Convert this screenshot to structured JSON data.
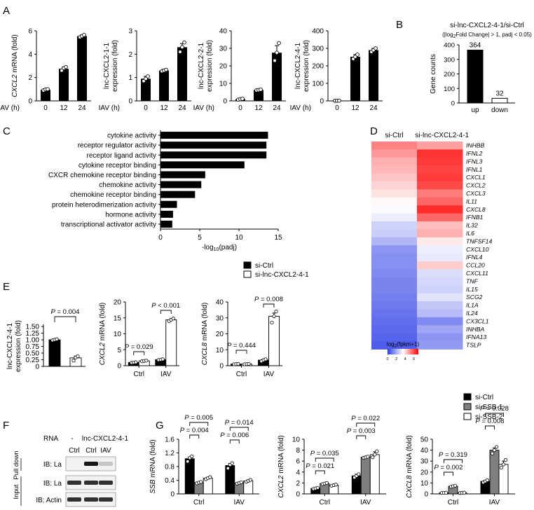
{
  "panels": {
    "A": "A",
    "B": "B",
    "C": "C",
    "D": "D",
    "E": "E",
    "F": "F",
    "G": "G"
  },
  "chart_data": [
    {
      "id": "A1",
      "type": "bar",
      "ylabel_italic": "CXCL2",
      "ylabel_rest": " mRNA (fold)",
      "xlabel": "IAV (h)",
      "categories": [
        "0",
        "12",
        "24"
      ],
      "values": [
        0.95,
        2.75,
        5.55
      ],
      "errors": [
        0.08,
        0.15,
        0.1
      ],
      "points": [
        [
          0.9,
          0.98,
          1.0
        ],
        [
          2.6,
          2.8,
          2.9
        ],
        [
          5.45,
          5.55,
          5.65
        ]
      ],
      "ylim": [
        0,
        6
      ],
      "yticks": [
        0,
        2,
        4,
        6
      ],
      "yticklabels": [
        "0",
        "2",
        "4",
        "6"
      ]
    },
    {
      "id": "A2",
      "type": "bar",
      "ylabel_lines": [
        "lnc-CXCL2-1-1",
        "expression (fold)"
      ],
      "xlabel": "IAV (h)",
      "categories": [
        "0",
        "12",
        "24"
      ],
      "values": [
        0.95,
        1.3,
        2.3
      ],
      "errors": [
        0.1,
        0.05,
        0.15
      ],
      "points": [
        [
          0.85,
          0.95,
          1.05
        ],
        [
          1.27,
          1.3,
          1.33
        ],
        [
          2.1,
          2.3,
          2.5
        ]
      ],
      "ylim": [
        0,
        3
      ],
      "yticks": [
        0,
        1,
        2,
        3
      ],
      "yticklabels": [
        "0",
        "1",
        "2",
        "3"
      ]
    },
    {
      "id": "A3",
      "type": "bar",
      "ylabel_lines": [
        "lnc-CXCL2-2-1",
        "expression (fold)"
      ],
      "xlabel": "IAV (h)",
      "categories": [
        "0",
        "12",
        "24"
      ],
      "values": [
        1.0,
        6.2,
        27.5
      ],
      "errors": [
        0.3,
        0.5,
        4.0
      ],
      "points": [
        [
          0.7,
          1.0,
          1.2
        ],
        [
          6.0,
          6.2,
          6.4
        ],
        [
          23.0,
          27.5,
          33.0
        ]
      ],
      "ylim": [
        0,
        40
      ],
      "yticks": [
        0,
        10,
        20,
        30,
        40
      ],
      "yticklabels": [
        "0",
        "10",
        "20",
        "30",
        "40"
      ]
    },
    {
      "id": "A4",
      "type": "bar",
      "ylabel_lines": [
        "lnc-CXCL2-4-1",
        "expression (fold)"
      ],
      "xlabel": "IAV (h)",
      "categories": [
        "0",
        "12",
        "24"
      ],
      "values": [
        1.0,
        252,
        290
      ],
      "errors": [
        0.5,
        12,
        10
      ],
      "points": [
        [
          0.8,
          1.0,
          1.2
        ],
        [
          240,
          252,
          264
        ],
        [
          280,
          290,
          300
        ]
      ],
      "ylim": [
        0,
        400
      ],
      "yticks": [
        0,
        100,
        200,
        300,
        400
      ],
      "yticklabels": [
        "0",
        "100",
        "200",
        "300",
        "400"
      ]
    },
    {
      "id": "B",
      "type": "bar",
      "title": "si-lnc-CXCL2-4-1/si-Ctrl",
      "subtitle": "(|log2Fold Change| > 1, padj < 0.05)",
      "ylabel": "Gene counts",
      "categories": [
        "up",
        "down"
      ],
      "values": [
        364,
        32
      ],
      "data_labels": [
        "364",
        "32"
      ],
      "colors": [
        "#000000",
        "#ffffff"
      ],
      "ylim": [
        0,
        400
      ],
      "yticks": [
        0,
        100,
        200,
        300,
        400
      ],
      "yticklabels": [
        "0",
        "100",
        "200",
        "300",
        "400"
      ]
    },
    {
      "id": "C",
      "type": "bar",
      "orientation": "horizontal",
      "xlabel": "-log10(padj)",
      "categories": [
        "cytokine activity",
        "receptor regulator activity",
        "receptor ligand activity",
        "cytokine receptor binding",
        "CXCR chemokine receptor binding",
        "chemokine activity",
        "chemokine receptor binding",
        "protein heterodimerization activity",
        "hormone activity",
        "transcriptional activator activity"
      ],
      "values": [
        13.7,
        13.5,
        13.5,
        10.7,
        5.7,
        5.2,
        4.4,
        2.1,
        1.6,
        1.5
      ],
      "xlim": [
        0,
        15
      ],
      "xticks": [
        0,
        5,
        10,
        15
      ],
      "xticklabels": [
        "0",
        "5",
        "10",
        "15"
      ]
    },
    {
      "id": "D",
      "type": "heatmap",
      "columns": [
        "si-Ctrl",
        "si-lnc-CXCL2-4-1"
      ],
      "rows": [
        "INHBB",
        "IFNL2",
        "IFNL3",
        "IFNL1",
        "CXCL1",
        "CXCL2",
        "CXCL3",
        "IL11",
        "CXCL8",
        "IFNB1",
        "IL32",
        "IL6",
        "TNFSF14",
        "CXCL10",
        "IFNL4",
        "CCL20",
        "CXCL11",
        "TNF",
        "IL15",
        "SCG2",
        "IL1A",
        "IL24",
        "CX3CL1",
        "INHBA",
        "IFNA13",
        "TSLP"
      ],
      "values": [
        [
          5.2,
          4.8
        ],
        [
          4.9,
          6.3
        ],
        [
          4.6,
          6.2
        ],
        [
          4.5,
          6.1
        ],
        [
          4.3,
          6.2
        ],
        [
          4.1,
          6.0
        ],
        [
          3.9,
          5.3
        ],
        [
          3.6,
          5.6
        ],
        [
          3.4,
          6.4
        ],
        [
          3.2,
          5.6
        ],
        [
          2.7,
          4.4
        ],
        [
          2.6,
          4.6
        ],
        [
          2.2,
          3.8
        ],
        [
          1.6,
          3.2
        ],
        [
          1.5,
          3.1
        ],
        [
          1.5,
          4.2
        ],
        [
          1.4,
          2.9
        ],
        [
          1.3,
          2.8
        ],
        [
          1.3,
          2.7
        ],
        [
          1.2,
          3.0
        ],
        [
          1.1,
          2.5
        ],
        [
          1.0,
          2.3
        ],
        [
          0.9,
          1.4
        ],
        [
          0.8,
          1.9
        ],
        [
          0.7,
          1.6
        ],
        [
          0.6,
          1.7
        ]
      ],
      "colorbar_title": "log2(fpkm+1)",
      "colorbar_ticks": [
        "0",
        "2",
        "4",
        "6"
      ],
      "colormap": [
        "#2c3ce6",
        "#ffffff",
        "#ff0000"
      ],
      "vmin": 0,
      "vmax": 7,
      "vmid": 3.5
    },
    {
      "id": "E1",
      "type": "bar",
      "ylabel_lines": [
        "lnc-CXCL2-4-1",
        "expression (fold)"
      ],
      "categories": [
        "si-Ctrl",
        "si-lnc-CXCL2-4-1"
      ],
      "values": [
        1.0,
        0.32
      ],
      "errors": [
        0.02,
        0.07
      ],
      "points": [
        [
          0.98,
          1.0,
          1.02
        ],
        [
          0.22,
          0.33,
          0.38
        ]
      ],
      "ylim": [
        0,
        1.5
      ],
      "yticks": [
        0,
        0.25,
        0.5,
        0.75,
        1.0,
        1.25,
        1.5
      ],
      "yticklabels": [
        "0",
        "0.25",
        "0.50",
        "0.75",
        "1.00",
        "1.25",
        "1.50"
      ],
      "pvalues": [
        "P = 0.004"
      ]
    },
    {
      "id": "E2",
      "type": "bar",
      "ylabel_italic": "CXCL2",
      "ylabel_rest": " mRNA (fold)",
      "groups": [
        "Ctrl",
        "IAV"
      ],
      "series": [
        {
          "name": "si-Ctrl",
          "values": [
            1.0,
            1.9
          ],
          "errors": [
            0.1,
            0.1
          ]
        },
        {
          "name": "si-lnc-CXCL2-4-1",
          "values": [
            1.5,
            14.4
          ],
          "errors": [
            0.15,
            0.4
          ]
        }
      ],
      "points": [
        [
          [
            0.9,
            1.0,
            1.1
          ],
          [
            1.8,
            1.9,
            2.0
          ]
        ],
        [
          [
            1.4,
            1.5,
            1.6
          ],
          [
            14.0,
            14.4,
            14.8
          ]
        ]
      ],
      "ylim": [
        0,
        20
      ],
      "yticks": [
        0,
        5,
        10,
        15,
        20
      ],
      "yticklabels": [
        "0",
        "5",
        "10",
        "15",
        "20"
      ],
      "pvalues": [
        "P = 0.029",
        "P < 0.001"
      ]
    },
    {
      "id": "E3",
      "type": "bar",
      "ylabel_italic": "CXCL8",
      "ylabel_rest": " mRNA (fold)",
      "groups": [
        "Ctrl",
        "IAV"
      ],
      "series": [
        {
          "name": "si-Ctrl",
          "values": [
            1.0,
            3.5
          ],
          "errors": [
            0.1,
            0.6
          ]
        },
        {
          "name": "si-lnc-CXCL2-4-1",
          "values": [
            1.0,
            31.0
          ],
          "errors": [
            0.1,
            2.0
          ]
        }
      ],
      "points": [
        [
          [
            0.9,
            1.0,
            1.1
          ],
          [
            2.8,
            3.5,
            4.0
          ]
        ],
        [
          [
            0.9,
            1.0,
            1.1
          ],
          [
            27.0,
            31.0,
            34.0
          ]
        ]
      ],
      "ylim": [
        0,
        40
      ],
      "yticks": [
        0,
        10,
        20,
        30,
        40
      ],
      "yticklabels": [
        "0",
        "10",
        "20",
        "30",
        "40"
      ],
      "pvalues": [
        "P = 0.444",
        "P = 0.008"
      ]
    },
    {
      "id": "G1",
      "type": "bar",
      "ylabel_italic": "SSB",
      "ylabel_rest": " mRNA (fold)",
      "groups": [
        "Ctrl",
        "IAV"
      ],
      "series": [
        {
          "name": "si-Ctrl",
          "values": [
            1.03,
            0.83
          ],
          "errors": [
            0.05,
            0.06
          ]
        },
        {
          "name": "si-SSB-1",
          "values": [
            0.33,
            0.32
          ],
          "errors": [
            0.02,
            0.02
          ]
        },
        {
          "name": "si-SSB-2",
          "values": [
            0.46,
            0.38
          ],
          "errors": [
            0.03,
            0.03
          ]
        }
      ],
      "points": [
        [
          [
            0.95,
            1.05,
            1.1
          ],
          [
            0.75,
            0.85,
            0.9
          ]
        ],
        [
          [
            0.31,
            0.33,
            0.35
          ],
          [
            0.3,
            0.32,
            0.34
          ]
        ],
        [
          [
            0.43,
            0.46,
            0.49
          ],
          [
            0.35,
            0.38,
            0.41
          ]
        ]
      ],
      "ylim": [
        0,
        1.6
      ],
      "yticks": [
        0,
        0.4,
        0.8,
        1.2,
        1.6
      ],
      "yticklabels": [
        "0",
        "0.4",
        "0.8",
        "1.2",
        "1.6"
      ],
      "pvalues": [
        "P = 0.005",
        "P = 0.004",
        "P = 0.014",
        "P = 0.006"
      ]
    },
    {
      "id": "G2",
      "type": "bar",
      "ylabel_italic": "CXCL2",
      "ylabel_rest": " mRNA (fold)",
      "groups": [
        "Ctrl",
        "IAV"
      ],
      "series": [
        {
          "name": "si-Ctrl",
          "values": [
            1.0,
            3.3
          ],
          "errors": [
            0.1,
            0.3
          ]
        },
        {
          "name": "si-SSB-1",
          "values": [
            1.9,
            6.7
          ],
          "errors": [
            0.1,
            0.15
          ]
        },
        {
          "name": "si-SSB-2",
          "values": [
            1.6,
            7.2
          ],
          "errors": [
            0.1,
            0.5
          ]
        }
      ],
      "points": [
        [
          [
            0.9,
            1.0,
            1.1
          ],
          [
            3.0,
            3.3,
            3.6
          ]
        ],
        [
          [
            1.8,
            1.9,
            2.0
          ],
          [
            6.6,
            6.7,
            6.8
          ]
        ],
        [
          [
            1.5,
            1.6,
            1.7
          ],
          [
            6.7,
            7.2,
            7.8
          ]
        ]
      ],
      "ylim": [
        0,
        10
      ],
      "yticks": [
        0,
        2,
        4,
        6,
        8,
        10
      ],
      "yticklabels": [
        "0",
        "2",
        "4",
        "6",
        "8",
        "10"
      ],
      "pvalues": [
        "P = 0.035",
        "P = 0.021",
        "P = 0.022",
        "P = 0.003"
      ]
    },
    {
      "id": "G3",
      "type": "bar",
      "ylabel_italic": "CXCL8",
      "ylabel_rest": " mRNA (fold)",
      "groups": [
        "Ctrl",
        "IAV"
      ],
      "series": [
        {
          "name": "si-Ctrl",
          "values": [
            1.0,
            11.5
          ],
          "errors": [
            0.1,
            1.0
          ]
        },
        {
          "name": "si-SSB-1",
          "values": [
            7.0,
            40.0
          ],
          "errors": [
            0.5,
            2.0
          ]
        },
        {
          "name": "si-SSB-2",
          "values": [
            1.0,
            27.0
          ],
          "errors": [
            0.2,
            3.0
          ]
        }
      ],
      "points": [
        [
          [
            0.9,
            1.0,
            1.1
          ],
          [
            10.5,
            11.5,
            12.5
          ]
        ],
        [
          [
            6.5,
            7.0,
            7.5
          ],
          [
            37.0,
            40.0,
            43.0
          ]
        ],
        [
          [
            0.8,
            1.0,
            1.2
          ],
          [
            24.0,
            27.0,
            31.0
          ]
        ]
      ],
      "ylim": [
        0,
        50
      ],
      "yticks": [
        0,
        10,
        20,
        30,
        40,
        50
      ],
      "yticklabels": [
        "0",
        "10",
        "20",
        "30",
        "40",
        "50"
      ],
      "pvalues": [
        "P = 0.319",
        "P = 0.002",
        "P = 0.028",
        "P = 0.008"
      ]
    }
  ],
  "legend_E": [
    {
      "label": "si-Ctrl",
      "fill": "#000000"
    },
    {
      "label": "si-lnc-CXCL2-4-1",
      "fill": "#ffffff"
    }
  ],
  "legend_G": [
    {
      "label": "si-Ctrl",
      "fill": "#000000"
    },
    {
      "label": "si-SSB-1",
      "fill": "#7f7f7f"
    },
    {
      "label": "si-SSB-2",
      "fill": "#ffffff"
    }
  ],
  "blot": {
    "rna_label": "RNA",
    "lane_header_dash": "-",
    "lane_header_lnc": "lnc-CXCL2-4-1",
    "lanes": [
      "Ctrl",
      "Ctrl",
      "IAV"
    ],
    "rows": [
      {
        "section": "Pull down",
        "label": "IB: La",
        "intensities": [
          0.0,
          1.0,
          0.25
        ]
      },
      {
        "section": "Input",
        "label": "IB: La",
        "intensities": [
          0.9,
          0.9,
          0.9
        ]
      },
      {
        "section": "Input",
        "label": "IB: Actin",
        "intensities": [
          0.9,
          0.9,
          0.9
        ]
      }
    ],
    "section_labels": [
      "Input",
      "Pull down"
    ]
  }
}
